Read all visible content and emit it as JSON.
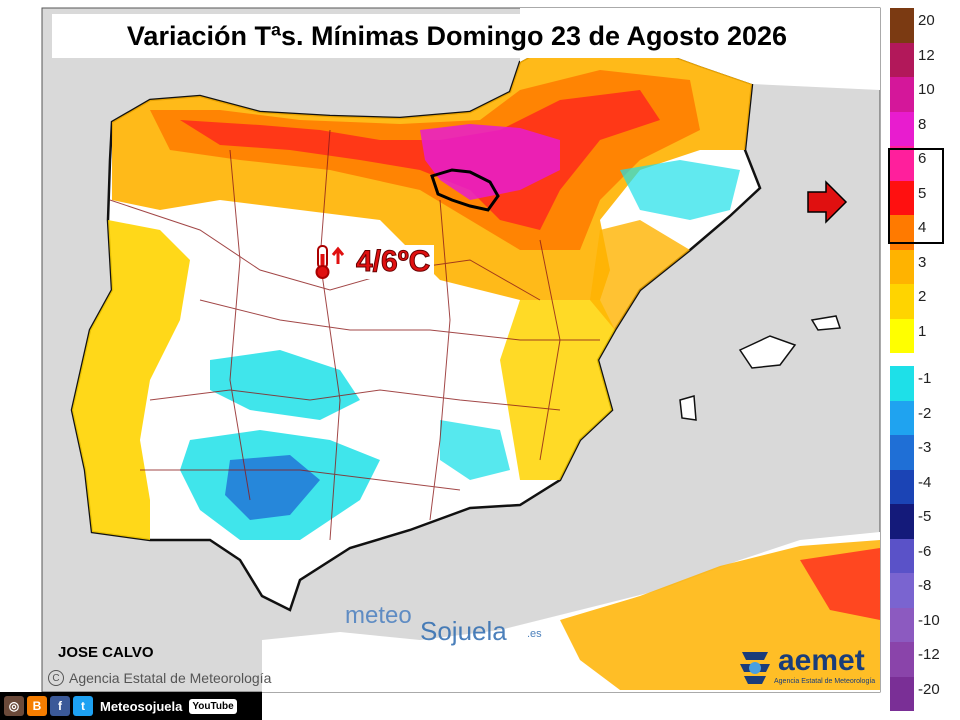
{
  "title": "Variación Tªs. Mínimas Domingo 23 de Agosto 2026",
  "callout": {
    "value": "4/6ºC",
    "icon": "thermometer-up-icon"
  },
  "author": "JOSE CALVO",
  "agency_credit": "Agencia Estatal de Meteorología",
  "watermark": {
    "part1": "meteo",
    "part2": "Sojuela",
    "suffix": ".es"
  },
  "aemet_logo": {
    "word": "aemet",
    "sub": "Agencia Estatal de Meteorología"
  },
  "social": {
    "handle": "Meteosojuela",
    "youtube": "YouTube",
    "icons": [
      "instagram-icon",
      "blogger-icon",
      "facebook-icon",
      "twitter-icon"
    ]
  },
  "legend": {
    "positive": [
      {
        "label": "20",
        "color": "#7b3a12"
      },
      {
        "label": "12",
        "color": "#b2185a"
      },
      {
        "label": "10",
        "color": "#d4179a"
      },
      {
        "label": "8",
        "color": "#e81ccf"
      },
      {
        "label": "6",
        "color": "#ff1f9c"
      },
      {
        "label": "5",
        "color": "#ff1010"
      },
      {
        "label": "4",
        "color": "#ff7a00"
      },
      {
        "label": "3",
        "color": "#ffb300"
      },
      {
        "label": "2",
        "color": "#ffd400"
      },
      {
        "label": "1",
        "color": "#ffff00"
      }
    ],
    "negative": [
      {
        "label": "-1",
        "color": "#1ee0e8"
      },
      {
        "label": "-2",
        "color": "#1fa3f0"
      },
      {
        "label": "-3",
        "color": "#1f6fd6"
      },
      {
        "label": "-4",
        "color": "#1b44b5"
      },
      {
        "label": "-5",
        "color": "#141a7a"
      },
      {
        "label": "-6",
        "color": "#5a52c8"
      },
      {
        "label": "-8",
        "color": "#7a64d0"
      },
      {
        "label": "-10",
        "color": "#8c5ac0"
      },
      {
        "label": "-12",
        "color": "#8a44aa"
      },
      {
        "label": "-20",
        "color": "#7a2f96"
      }
    ],
    "highlighted_range": [
      "4",
      "6"
    ]
  }
}
